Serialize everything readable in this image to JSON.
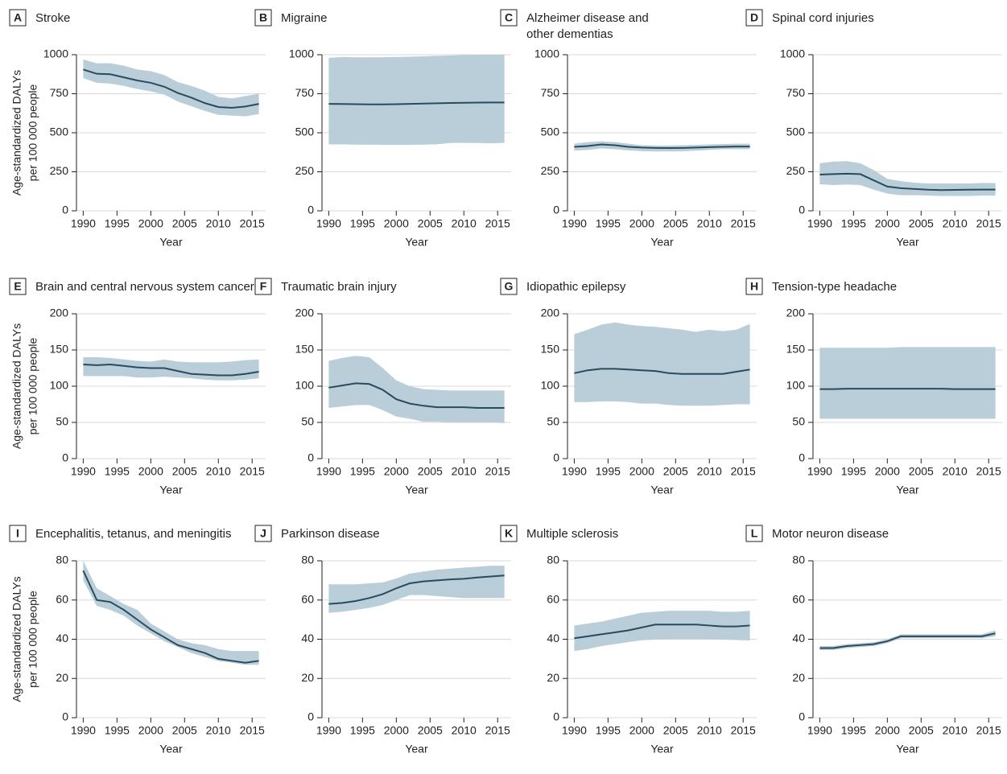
{
  "chart_data": [
    {
      "type": "line",
      "label": "A",
      "title": [
        "Stroke"
      ],
      "xlabel": "Year",
      "ylabel": [
        "Age-standardized DALYs",
        "per 100 000 people"
      ],
      "x": [
        1990,
        1992,
        1994,
        1996,
        1998,
        2000,
        2002,
        2004,
        2006,
        2008,
        2010,
        2012,
        2014,
        2016
      ],
      "series": [
        {
          "color": "#2a4b5e",
          "band_color": "#b9ced8",
          "values": [
            905,
            878,
            875,
            855,
            835,
            820,
            795,
            755,
            725,
            690,
            665,
            660,
            668,
            685
          ],
          "upper": [
            970,
            945,
            945,
            930,
            905,
            895,
            870,
            825,
            800,
            770,
            730,
            720,
            735,
            750
          ],
          "lower": [
            850,
            820,
            815,
            800,
            780,
            765,
            745,
            700,
            670,
            640,
            615,
            610,
            605,
            620
          ]
        }
      ],
      "xlim": [
        1989,
        2017
      ],
      "xticks": [
        1990,
        1995,
        2000,
        2005,
        2010,
        2015
      ],
      "ylim": [
        0,
        1000
      ],
      "yticks": [
        0,
        250,
        500,
        750,
        1000
      ],
      "grid": true
    },
    {
      "type": "line",
      "label": "B",
      "title": [
        "Migraine"
      ],
      "xlabel": "Year",
      "x": [
        1990,
        1992,
        1994,
        1996,
        1998,
        2000,
        2002,
        2004,
        2006,
        2008,
        2010,
        2012,
        2014,
        2016
      ],
      "series": [
        {
          "color": "#2a4b5e",
          "band_color": "#b9ced8",
          "values": [
            685,
            684,
            683,
            682,
            682,
            683,
            685,
            687,
            689,
            691,
            692,
            693,
            694,
            694
          ],
          "upper": [
            980,
            985,
            983,
            983,
            984,
            985,
            987,
            990,
            993,
            995,
            998,
            1000,
            1000,
            1000
          ],
          "lower": [
            425,
            425,
            424,
            424,
            423,
            423,
            423,
            424,
            426,
            435,
            435,
            434,
            433,
            435
          ]
        }
      ],
      "xlim": [
        1989,
        2017
      ],
      "xticks": [
        1990,
        1995,
        2000,
        2005,
        2010,
        2015
      ],
      "ylim": [
        0,
        1000
      ],
      "yticks": [
        0,
        250,
        500,
        750,
        1000
      ],
      "grid": true
    },
    {
      "type": "line",
      "label": "C",
      "title": [
        "Alzheimer disease and",
        "other dementias"
      ],
      "xlabel": "Year",
      "x": [
        1990,
        1992,
        1994,
        1996,
        1998,
        2000,
        2002,
        2004,
        2006,
        2008,
        2010,
        2012,
        2014,
        2016
      ],
      "series": [
        {
          "color": "#2a4b5e",
          "band_color": "#b9ced8",
          "values": [
            410,
            415,
            425,
            420,
            410,
            405,
            403,
            402,
            403,
            405,
            408,
            410,
            412,
            412
          ],
          "upper": [
            430,
            440,
            445,
            440,
            430,
            420,
            418,
            418,
            420,
            422,
            425,
            428,
            430,
            430
          ],
          "lower": [
            385,
            390,
            400,
            395,
            387,
            382,
            380,
            380,
            381,
            385,
            390,
            395,
            395,
            395
          ]
        }
      ],
      "xlim": [
        1989,
        2017
      ],
      "xticks": [
        1990,
        1995,
        2000,
        2005,
        2010,
        2015
      ],
      "ylim": [
        0,
        1000
      ],
      "yticks": [
        0,
        250,
        500,
        750,
        1000
      ],
      "grid": true
    },
    {
      "type": "line",
      "label": "D",
      "title": [
        "Spinal cord injuries"
      ],
      "xlabel": "Year",
      "x": [
        1990,
        1992,
        1994,
        1996,
        1998,
        2000,
        2002,
        2004,
        2006,
        2008,
        2010,
        2012,
        2014,
        2016
      ],
      "series": [
        {
          "color": "#2a4b5e",
          "band_color": "#b9ced8",
          "values": [
            232,
            235,
            238,
            235,
            195,
            155,
            145,
            140,
            135,
            133,
            134,
            135,
            136,
            136
          ],
          "upper": [
            305,
            315,
            318,
            305,
            260,
            205,
            190,
            180,
            175,
            175,
            175,
            175,
            178,
            178
          ],
          "lower": [
            170,
            165,
            168,
            165,
            135,
            110,
            100,
            100,
            98,
            95,
            95,
            95,
            97,
            97
          ]
        }
      ],
      "xlim": [
        1989,
        2017
      ],
      "xticks": [
        1990,
        1995,
        2000,
        2005,
        2010,
        2015
      ],
      "ylim": [
        0,
        1000
      ],
      "yticks": [
        0,
        250,
        500,
        750,
        1000
      ],
      "grid": true
    },
    {
      "type": "line",
      "label": "E",
      "title": [
        "Brain and central nervous system cancer"
      ],
      "xlabel": "Year",
      "ylabel": [
        "Age-standardized DALYs",
        "per 100 000 people"
      ],
      "x": [
        1990,
        1992,
        1994,
        1996,
        1998,
        2000,
        2002,
        2004,
        2006,
        2008,
        2010,
        2012,
        2014,
        2016
      ],
      "series": [
        {
          "color": "#2a4b5e",
          "band_color": "#b9ced8",
          "values": [
            130,
            129,
            130,
            128,
            126,
            125,
            125,
            121,
            117,
            116,
            115,
            115,
            117,
            120
          ],
          "upper": [
            140,
            140,
            139,
            137,
            135,
            134,
            137,
            134,
            133,
            133,
            133,
            134,
            136,
            137
          ],
          "lower": [
            114,
            114,
            114,
            114,
            112,
            112,
            113,
            112,
            111,
            109,
            108,
            108,
            109,
            111
          ]
        }
      ],
      "xlim": [
        1989,
        2017
      ],
      "xticks": [
        1990,
        1995,
        2000,
        2005,
        2010,
        2015
      ],
      "ylim": [
        0,
        200
      ],
      "yticks": [
        0,
        50,
        100,
        150,
        200
      ],
      "grid": true
    },
    {
      "type": "line",
      "label": "F",
      "title": [
        "Traumatic brain injury"
      ],
      "xlabel": "Year",
      "x": [
        1990,
        1992,
        1994,
        1996,
        1998,
        2000,
        2002,
        2004,
        2006,
        2008,
        2010,
        2012,
        2014,
        2016
      ],
      "series": [
        {
          "color": "#2a4b5e",
          "band_color": "#b9ced8",
          "values": [
            98,
            101,
            104,
            103,
            95,
            82,
            76,
            73,
            71,
            71,
            71,
            70,
            70,
            70
          ],
          "upper": [
            135,
            139,
            142,
            140,
            125,
            108,
            100,
            96,
            95,
            94,
            94,
            94,
            94,
            94
          ],
          "lower": [
            70,
            72,
            74,
            74,
            67,
            58,
            55,
            51,
            51,
            50,
            50,
            50,
            50,
            49
          ]
        }
      ],
      "xlim": [
        1989,
        2017
      ],
      "xticks": [
        1990,
        1995,
        2000,
        2005,
        2010,
        2015
      ],
      "ylim": [
        0,
        200
      ],
      "yticks": [
        0,
        50,
        100,
        150,
        200
      ],
      "grid": true
    },
    {
      "type": "line",
      "label": "G",
      "title": [
        "Idiopathic epilepsy"
      ],
      "xlabel": "Year",
      "x": [
        1990,
        1992,
        1994,
        1996,
        1998,
        2000,
        2002,
        2004,
        2006,
        2008,
        2010,
        2012,
        2014,
        2016
      ],
      "series": [
        {
          "color": "#2a4b5e",
          "band_color": "#b9ced8",
          "values": [
            118,
            122,
            124,
            124,
            123,
            122,
            121,
            118,
            117,
            117,
            117,
            117,
            120,
            123
          ],
          "upper": [
            172,
            178,
            185,
            188,
            185,
            183,
            182,
            180,
            178,
            175,
            178,
            176,
            178,
            186
          ],
          "lower": [
            78,
            78,
            79,
            79,
            78,
            76,
            76,
            74,
            73,
            73,
            73,
            74,
            75,
            75
          ]
        }
      ],
      "xlim": [
        1989,
        2017
      ],
      "xticks": [
        1990,
        1995,
        2000,
        2005,
        2010,
        2015
      ],
      "ylim": [
        0,
        200
      ],
      "yticks": [
        0,
        50,
        100,
        150,
        200
      ],
      "grid": true
    },
    {
      "type": "line",
      "label": "H",
      "title": [
        "Tension-type headache"
      ],
      "xlabel": "Year",
      "x": [
        1990,
        1992,
        1994,
        1996,
        1998,
        2000,
        2002,
        2004,
        2006,
        2008,
        2010,
        2012,
        2014,
        2016
      ],
      "series": [
        {
          "color": "#2a4b5e",
          "band_color": "#b9ced8",
          "values": [
            96,
            96,
            96.5,
            96.5,
            96.5,
            96.5,
            96.5,
            96.5,
            96.5,
            96.5,
            96,
            96,
            96,
            96
          ],
          "upper": [
            153,
            153,
            153,
            153,
            153,
            153,
            154,
            154,
            154,
            154,
            154,
            154,
            154,
            154
          ],
          "lower": [
            55,
            55,
            55,
            55,
            55,
            55,
            55,
            55,
            55,
            55,
            55,
            55,
            55,
            55
          ]
        }
      ],
      "xlim": [
        1989,
        2017
      ],
      "xticks": [
        1990,
        1995,
        2000,
        2005,
        2010,
        2015
      ],
      "ylim": [
        0,
        200
      ],
      "yticks": [
        0,
        50,
        100,
        150,
        200
      ],
      "grid": true
    },
    {
      "type": "line",
      "label": "I",
      "title": [
        "Encephalitis, tetanus, and meningitis"
      ],
      "xlabel": "Year",
      "ylabel": [
        "Age-standardized DALYs",
        "per 100 000 people"
      ],
      "x": [
        1990,
        1992,
        1994,
        1996,
        1998,
        2000,
        2002,
        2004,
        2006,
        2008,
        2010,
        2012,
        2014,
        2016
      ],
      "series": [
        {
          "color": "#2a4b5e",
          "band_color": "#b9ced8",
          "values": [
            75,
            60,
            59,
            55,
            50,
            45,
            41,
            37,
            35,
            33,
            30,
            29,
            28,
            29
          ],
          "upper": [
            80,
            66,
            62,
            58,
            55,
            48,
            44,
            40,
            38,
            37,
            35,
            34,
            34,
            34
          ],
          "lower": [
            70,
            57,
            55,
            52,
            47,
            43,
            39,
            36,
            33,
            31,
            29,
            28,
            27,
            27
          ]
        }
      ],
      "xlim": [
        1989,
        2017
      ],
      "xticks": [
        1990,
        1995,
        2000,
        2005,
        2010,
        2015
      ],
      "ylim": [
        0,
        80
      ],
      "yticks": [
        0,
        20,
        40,
        60,
        80
      ],
      "grid": true
    },
    {
      "type": "line",
      "label": "J",
      "title": [
        "Parkinson disease"
      ],
      "xlabel": "Year",
      "x": [
        1990,
        1992,
        1994,
        1996,
        1998,
        2000,
        2002,
        2004,
        2006,
        2008,
        2010,
        2012,
        2014,
        2016
      ],
      "series": [
        {
          "color": "#2a4b5e",
          "band_color": "#b9ced8",
          "values": [
            58,
            58.5,
            59.5,
            61,
            63,
            66,
            68.5,
            69.5,
            70,
            70.5,
            70.8,
            71.5,
            72,
            72.5
          ],
          "upper": [
            68,
            68,
            68,
            68.5,
            69,
            71,
            73.5,
            74.5,
            75.5,
            76,
            76.5,
            77,
            77.5,
            77.5
          ],
          "lower": [
            53.5,
            54,
            55,
            56,
            57.5,
            60,
            62.5,
            62.5,
            62,
            61.5,
            61,
            61,
            61,
            61
          ]
        }
      ],
      "xlim": [
        1989,
        2017
      ],
      "xticks": [
        1990,
        1995,
        2000,
        2005,
        2010,
        2015
      ],
      "ylim": [
        0,
        80
      ],
      "yticks": [
        0,
        20,
        40,
        60,
        80
      ],
      "grid": true
    },
    {
      "type": "line",
      "label": "K",
      "title": [
        "Multiple sclerosis"
      ],
      "xlabel": "Year",
      "x": [
        1990,
        1992,
        1994,
        1996,
        1998,
        2000,
        2002,
        2004,
        2006,
        2008,
        2010,
        2012,
        2014,
        2016
      ],
      "series": [
        {
          "color": "#2a4b5e",
          "band_color": "#b9ced8",
          "values": [
            40.5,
            41.5,
            42.5,
            43.5,
            44.5,
            46,
            47.5,
            47.5,
            47.5,
            47.5,
            47,
            46.5,
            46.5,
            47
          ],
          "upper": [
            47,
            48,
            49,
            50.5,
            52,
            53.5,
            54,
            54.5,
            54.5,
            54.5,
            54.5,
            54,
            54,
            54.5
          ],
          "lower": [
            34,
            35,
            36.5,
            37.5,
            38.5,
            39.5,
            39.8,
            40,
            40,
            40,
            40,
            39.8,
            39.6,
            39.4
          ]
        }
      ],
      "xlim": [
        1989,
        2017
      ],
      "xticks": [
        1990,
        1995,
        2000,
        2005,
        2010,
        2015
      ],
      "ylim": [
        0,
        80
      ],
      "yticks": [
        0,
        20,
        40,
        60,
        80
      ],
      "grid": true
    },
    {
      "type": "line",
      "label": "L",
      "title": [
        "Motor neuron disease"
      ],
      "xlabel": "Year",
      "x": [
        1990,
        1992,
        1994,
        1996,
        1998,
        2000,
        2002,
        2004,
        2006,
        2008,
        2010,
        2012,
        2014,
        2016
      ],
      "series": [
        {
          "color": "#2a4b5e",
          "band_color": "#b9ced8",
          "values": [
            35.5,
            35.5,
            36.5,
            37,
            37.5,
            39,
            41.5,
            41.5,
            41.5,
            41.5,
            41.5,
            41.5,
            41.5,
            43
          ],
          "upper": [
            36.5,
            36.5,
            37.5,
            38,
            38.5,
            40,
            42.5,
            42.5,
            42.5,
            42.5,
            42.5,
            42.5,
            42.5,
            44.5
          ],
          "lower": [
            34.5,
            34.5,
            35.5,
            36,
            36.5,
            38,
            40.5,
            40.5,
            40.5,
            40.5,
            40.5,
            40.5,
            40.5,
            41.5
          ]
        }
      ],
      "xlim": [
        1989,
        2017
      ],
      "xticks": [
        1990,
        1995,
        2000,
        2005,
        2010,
        2015
      ],
      "ylim": [
        0,
        80
      ],
      "yticks": [
        0,
        20,
        40,
        60,
        80
      ],
      "grid": true
    }
  ]
}
